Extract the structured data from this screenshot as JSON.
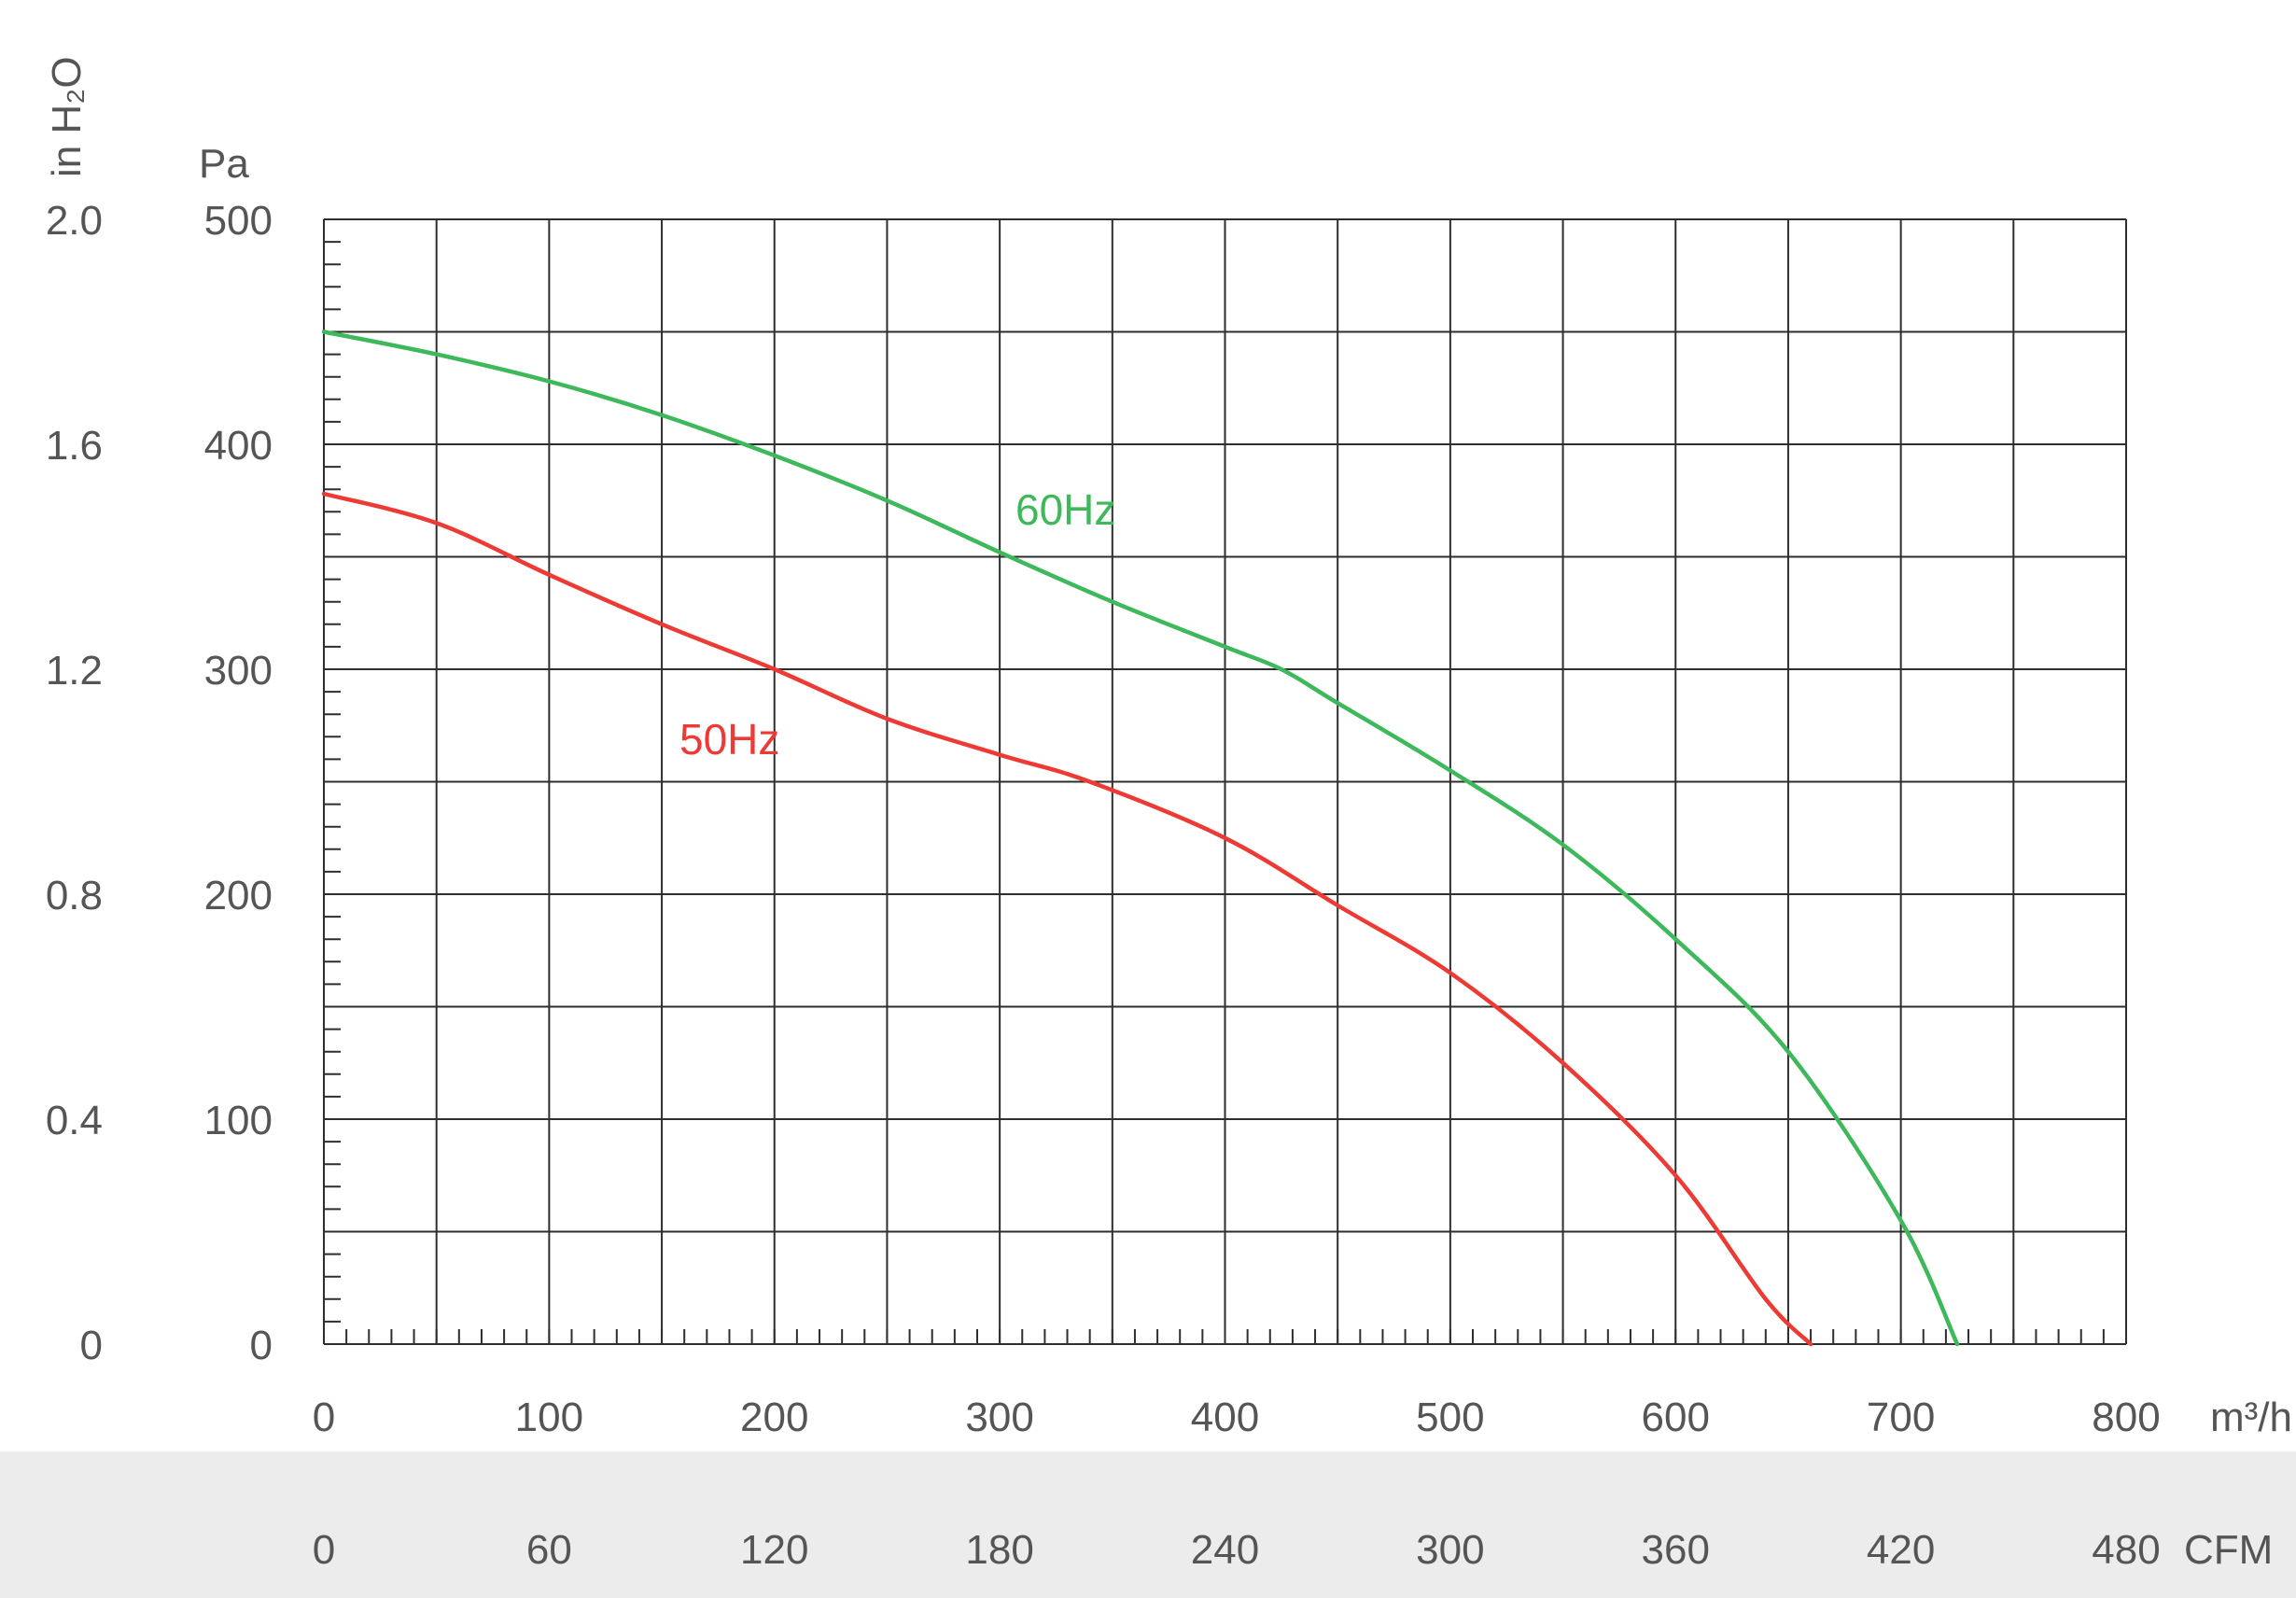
{
  "chart_data": {
    "type": "line",
    "title": "",
    "x_axis": {
      "label": "m³/h",
      "range": [
        0,
        800
      ],
      "ticks": [
        "0",
        "100",
        "200",
        "300",
        "400",
        "500",
        "600",
        "700",
        "800"
      ]
    },
    "x2_axis": {
      "label": "CFM",
      "ticks": [
        "0",
        "60",
        "120",
        "180",
        "240",
        "300",
        "360",
        "420",
        "480"
      ]
    },
    "y_axis": {
      "label": "Pa",
      "range": [
        0,
        500
      ],
      "ticks": [
        "0",
        "100",
        "200",
        "300",
        "400",
        "500"
      ]
    },
    "y2_axis": {
      "label": "in H₂O",
      "ticks": [
        "0",
        "0.4",
        "0.8",
        "1.2",
        "1.6",
        "2.0"
      ]
    },
    "grid": true,
    "series": [
      {
        "name": "60Hz",
        "color": "#3db85a",
        "points": [
          [
            0,
            450
          ],
          [
            50,
            440
          ],
          [
            100,
            428
          ],
          [
            150,
            413
          ],
          [
            200,
            395
          ],
          [
            250,
            375
          ],
          [
            300,
            352
          ],
          [
            350,
            330
          ],
          [
            400,
            310
          ],
          [
            425,
            300
          ],
          [
            450,
            285
          ],
          [
            500,
            255
          ],
          [
            550,
            222
          ],
          [
            600,
            180
          ],
          [
            650,
            130
          ],
          [
            700,
            55
          ],
          [
            725,
            0
          ]
        ]
      },
      {
        "name": "50Hz",
        "color": "#ee3a34",
        "points": [
          [
            0,
            378
          ],
          [
            50,
            365
          ],
          [
            100,
            342
          ],
          [
            150,
            320
          ],
          [
            200,
            300
          ],
          [
            250,
            278
          ],
          [
            300,
            262
          ],
          [
            340,
            250
          ],
          [
            400,
            225
          ],
          [
            450,
            195
          ],
          [
            500,
            165
          ],
          [
            550,
            125
          ],
          [
            600,
            75
          ],
          [
            640,
            20
          ],
          [
            660,
            0
          ]
        ]
      }
    ]
  }
}
